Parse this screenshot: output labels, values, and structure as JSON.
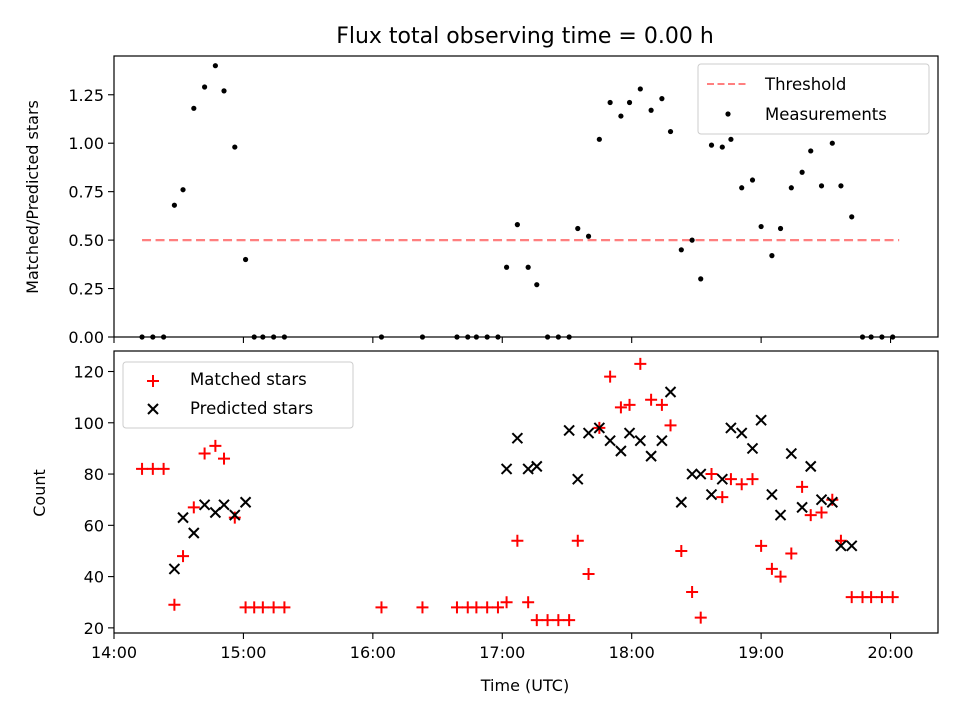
{
  "chart_data": [
    {
      "type": "scatter",
      "title": "Flux total observing time = 0.00 h",
      "xlabel": "",
      "ylabel": "Matched/Predicted stars",
      "xlim": [
        "14:00",
        "20:22"
      ],
      "ylim": [
        0,
        1.45
      ],
      "yticks": [
        "0.00",
        "0.25",
        "0.50",
        "0.75",
        "1.00",
        "1.25"
      ],
      "ytick_values": [
        0,
        0.25,
        0.5,
        0.75,
        1.0,
        1.25
      ],
      "legend": {
        "placement": "upper right",
        "entries": [
          "Threshold",
          "Measurements"
        ]
      },
      "series": [
        {
          "name": "Threshold",
          "type": "line",
          "style": "dashed",
          "color": "#ff7f7f",
          "x": [
            "14:13",
            "20:04"
          ],
          "y": [
            0.5,
            0.5
          ]
        },
        {
          "name": "Measurements",
          "type": "scatter",
          "marker": "dot",
          "color": "#000000",
          "x": [
            "14:13",
            "14:18",
            "14:23",
            "14:28",
            "14:32",
            "14:37",
            "14:42",
            "14:47",
            "14:51",
            "14:56",
            "15:01",
            "15:05",
            "15:09",
            "15:14",
            "15:19",
            "16:04",
            "16:23",
            "16:39",
            "16:44",
            "16:48",
            "16:53",
            "16:58",
            "17:02",
            "17:07",
            "17:12",
            "17:16",
            "17:21",
            "17:26",
            "17:31",
            "17:35",
            "17:40",
            "17:45",
            "17:50",
            "17:55",
            "17:59",
            "18:04",
            "18:09",
            "18:14",
            "18:18",
            "18:23",
            "18:28",
            "18:32",
            "18:37",
            "18:42",
            "18:46",
            "18:51",
            "18:56",
            "19:00",
            "19:05",
            "19:09",
            "19:14",
            "19:19",
            "19:23",
            "19:28",
            "19:33",
            "19:37",
            "19:42",
            "19:47",
            "19:51",
            "19:56",
            "20:01"
          ],
          "y": [
            0,
            0,
            0,
            0.68,
            0.76,
            1.18,
            1.29,
            1.4,
            1.27,
            0.98,
            0.4,
            0,
            0,
            0,
            0,
            0,
            0,
            0,
            0,
            0,
            0,
            0,
            0.36,
            0.58,
            0.36,
            0.27,
            0,
            0,
            0,
            0.56,
            0.52,
            1.02,
            1.21,
            1.14,
            1.21,
            1.28,
            1.17,
            1.23,
            1.06,
            0.45,
            0.5,
            0.3,
            0.99,
            0.98,
            1.02,
            0.77,
            0.81,
            0.57,
            0.42,
            0.56,
            0.77,
            0.85,
            0.96,
            0.78,
            1.0,
            0.78,
            0.62,
            0,
            0,
            0,
            0
          ]
        }
      ]
    },
    {
      "type": "scatter",
      "title": "",
      "xlabel": "Time (UTC)",
      "ylabel": "Count",
      "xlim": [
        "14:00",
        "20:22"
      ],
      "ylim": [
        18,
        128
      ],
      "xticks": [
        "14:00",
        "15:00",
        "16:00",
        "17:00",
        "18:00",
        "19:00",
        "20:00"
      ],
      "yticks": [
        "20",
        "40",
        "60",
        "80",
        "100",
        "120"
      ],
      "ytick_values": [
        20,
        40,
        60,
        80,
        100,
        120
      ],
      "legend": {
        "placement": "upper left",
        "entries": [
          "Matched stars",
          "Predicted stars"
        ]
      },
      "series": [
        {
          "name": "Matched stars",
          "type": "scatter",
          "marker": "plus",
          "color": "#ff0000",
          "x": [
            "14:13",
            "14:18",
            "14:23",
            "14:28",
            "14:32",
            "14:37",
            "14:42",
            "14:47",
            "14:51",
            "14:56",
            "15:01",
            "15:05",
            "15:09",
            "15:14",
            "15:19",
            "16:04",
            "16:23",
            "16:39",
            "16:44",
            "16:48",
            "16:53",
            "16:58",
            "17:02",
            "17:07",
            "17:12",
            "17:16",
            "17:21",
            "17:26",
            "17:31",
            "17:35",
            "17:40",
            "17:45",
            "17:50",
            "17:55",
            "17:59",
            "18:04",
            "18:09",
            "18:14",
            "18:18",
            "18:23",
            "18:28",
            "18:32",
            "18:37",
            "18:42",
            "18:46",
            "18:51",
            "18:56",
            "19:00",
            "19:05",
            "19:09",
            "19:14",
            "19:19",
            "19:23",
            "19:28",
            "19:33",
            "19:37",
            "19:42",
            "19:47",
            "19:51",
            "19:56",
            "20:01"
          ],
          "y": [
            82,
            82,
            82,
            29,
            48,
            67,
            88,
            91,
            86,
            63,
            28,
            28,
            28,
            28,
            28,
            28,
            28,
            28,
            28,
            28,
            28,
            28,
            30,
            54,
            30,
            23,
            23,
            23,
            23,
            54,
            41,
            98,
            118,
            106,
            107,
            123,
            109,
            107,
            99,
            50,
            34,
            24,
            80,
            71,
            78,
            76,
            78,
            52,
            43,
            40,
            49,
            75,
            64,
            65,
            70,
            54,
            32,
            32,
            32,
            32,
            32
          ]
        },
        {
          "name": "Predicted stars",
          "type": "scatter",
          "marker": "x",
          "color": "#000000",
          "x": [
            "14:28",
            "14:32",
            "14:37",
            "14:42",
            "14:47",
            "14:51",
            "14:56",
            "15:01",
            "17:02",
            "17:07",
            "17:12",
            "17:16",
            "17:31",
            "17:35",
            "17:40",
            "17:45",
            "17:50",
            "17:55",
            "17:59",
            "18:04",
            "18:09",
            "18:14",
            "18:18",
            "18:23",
            "18:28",
            "18:32",
            "18:37",
            "18:42",
            "18:46",
            "18:51",
            "18:56",
            "19:00",
            "19:05",
            "19:09",
            "19:14",
            "19:19",
            "19:23",
            "19:28",
            "19:33",
            "19:37",
            "19:42"
          ],
          "y": [
            43,
            63,
            57,
            68,
            65,
            68,
            64,
            69,
            82,
            94,
            82,
            83,
            97,
            78,
            96,
            98,
            93,
            89,
            96,
            93,
            87,
            93,
            112,
            69,
            80,
            80,
            72,
            78,
            98,
            96,
            90,
            101,
            72,
            64,
            88,
            67,
            83,
            70,
            69,
            52,
            52
          ]
        }
      ]
    }
  ]
}
